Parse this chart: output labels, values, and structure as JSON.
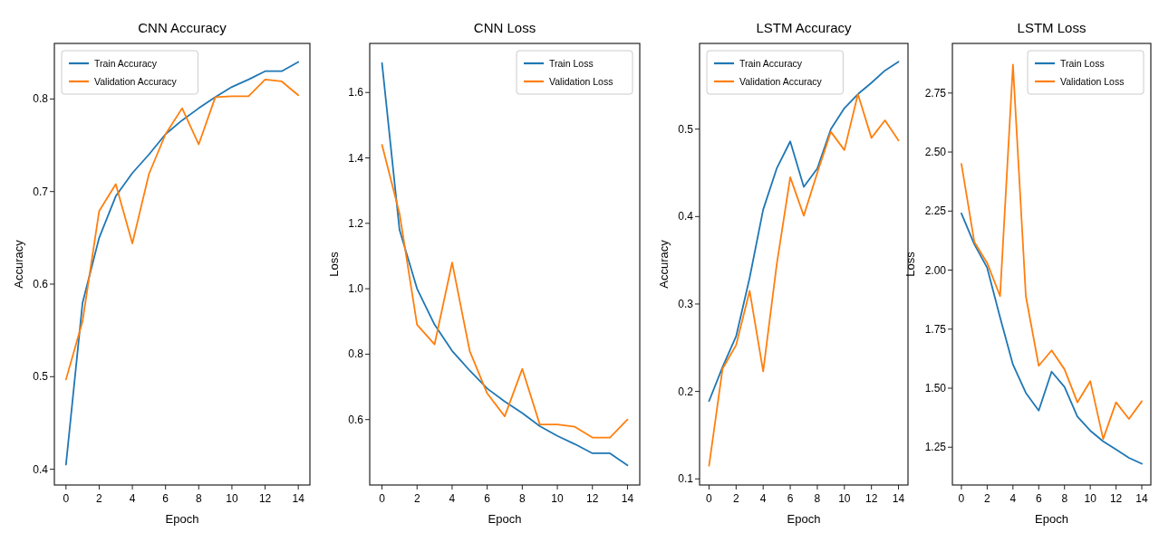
{
  "chart_data": [
    {
      "type": "line",
      "title": "CNN Accuracy",
      "xlabel": "Epoch",
      "ylabel": "Accuracy",
      "x": [
        0,
        1,
        2,
        3,
        4,
        5,
        6,
        7,
        8,
        9,
        10,
        11,
        12,
        13,
        14
      ],
      "xlim": [
        -0.7,
        14.7
      ],
      "xticks": [
        0,
        2,
        4,
        6,
        8,
        10,
        12,
        14
      ],
      "ylim": [
        0.383,
        0.86
      ],
      "yticks": [
        0.4,
        0.5,
        0.6,
        0.7,
        0.8
      ],
      "legend": "top left",
      "grid": false,
      "series": [
        {
          "name": "Train Accuracy",
          "color": "#1f77b4",
          "values": [
            0.405,
            0.58,
            0.65,
            0.695,
            0.72,
            0.74,
            0.762,
            0.777,
            0.79,
            0.802,
            0.813,
            0.821,
            0.83,
            0.83,
            0.84
          ]
        },
        {
          "name": "Validation Accuracy",
          "color": "#ff7f0e",
          "values": [
            0.497,
            0.56,
            0.679,
            0.708,
            0.644,
            0.719,
            0.762,
            0.79,
            0.751,
            0.802,
            0.803,
            0.803,
            0.821,
            0.819,
            0.804
          ]
        }
      ]
    },
    {
      "type": "line",
      "title": "CNN Loss",
      "xlabel": "Epoch",
      "ylabel": "Loss",
      "x": [
        0,
        1,
        2,
        3,
        4,
        5,
        6,
        7,
        8,
        9,
        10,
        11,
        12,
        13,
        14
      ],
      "xlim": [
        -0.7,
        14.7
      ],
      "xticks": [
        0,
        2,
        4,
        6,
        8,
        10,
        12,
        14
      ],
      "ylim": [
        0.4,
        1.75
      ],
      "yticks": [
        0.6,
        0.8,
        {
          "value": 1.0,
          "label": "1.0"
        },
        1.2,
        1.4,
        1.6
      ],
      "legend": "top right",
      "grid": false,
      "series": [
        {
          "name": "Train Loss",
          "color": "#1f77b4",
          "values": [
            1.69,
            1.18,
            1.0,
            0.89,
            0.81,
            0.75,
            0.695,
            0.655,
            0.62,
            0.58,
            0.55,
            0.525,
            0.497,
            0.497,
            0.46
          ]
        },
        {
          "name": "Validation Loss",
          "color": "#ff7f0e",
          "values": [
            1.44,
            1.23,
            0.89,
            0.83,
            1.08,
            0.81,
            0.68,
            0.61,
            0.755,
            0.585,
            0.585,
            0.578,
            0.545,
            0.545,
            0.6
          ]
        }
      ]
    },
    {
      "type": "line",
      "title": "LSTM Accuracy",
      "xlabel": "Epoch",
      "ylabel": "Accuracy",
      "x": [
        0,
        1,
        2,
        3,
        4,
        5,
        6,
        7,
        8,
        9,
        10,
        11,
        12,
        13,
        14
      ],
      "xlim": [
        -0.7,
        14.7
      ],
      "xticks": [
        0,
        2,
        4,
        6,
        8,
        10,
        12,
        14
      ],
      "ylim": [
        0.093,
        0.598
      ],
      "yticks": [
        0.1,
        0.2,
        0.3,
        0.4,
        0.5
      ],
      "legend": "top left",
      "grid": false,
      "series": [
        {
          "name": "Train Accuracy",
          "color": "#1f77b4",
          "values": [
            0.189,
            0.228,
            0.263,
            0.33,
            0.408,
            0.455,
            0.486,
            0.434,
            0.455,
            0.5,
            0.524,
            0.54,
            0.553,
            0.567,
            0.577
          ]
        },
        {
          "name": "Validation Accuracy",
          "color": "#ff7f0e",
          "values": [
            0.115,
            0.226,
            0.253,
            0.315,
            0.223,
            0.345,
            0.445,
            0.401,
            0.45,
            0.497,
            0.476,
            0.54,
            0.49,
            0.51,
            0.487
          ]
        }
      ]
    },
    {
      "type": "line",
      "title": "LSTM Loss",
      "xlabel": "Epoch",
      "ylabel": "Loss",
      "x": [
        0,
        1,
        2,
        3,
        4,
        5,
        6,
        7,
        8,
        9,
        10,
        11,
        12,
        13,
        14
      ],
      "xlim": [
        -0.7,
        14.7
      ],
      "xticks": [
        0,
        2,
        4,
        6,
        8,
        10,
        12,
        14
      ],
      "ylim": [
        1.09,
        2.96
      ],
      "yticks": [
        1.25,
        {
          "value": 1.5,
          "label": "1.50"
        },
        1.75,
        {
          "value": 2.0,
          "label": "2.00"
        },
        2.25,
        {
          "value": 2.5,
          "label": "2.50"
        },
        2.75
      ],
      "legend": "top right",
      "grid": false,
      "series": [
        {
          "name": "Train Loss",
          "color": "#1f77b4",
          "values": [
            2.24,
            2.11,
            2.01,
            1.8,
            1.6,
            1.48,
            1.405,
            1.57,
            1.505,
            1.38,
            1.32,
            1.275,
            1.24,
            1.205,
            1.18
          ]
        },
        {
          "name": "Validation Loss",
          "color": "#ff7f0e",
          "values": [
            2.45,
            2.12,
            2.03,
            1.89,
            2.87,
            1.89,
            1.595,
            1.66,
            1.58,
            1.44,
            1.53,
            1.285,
            1.44,
            1.37,
            1.445
          ]
        }
      ]
    }
  ]
}
